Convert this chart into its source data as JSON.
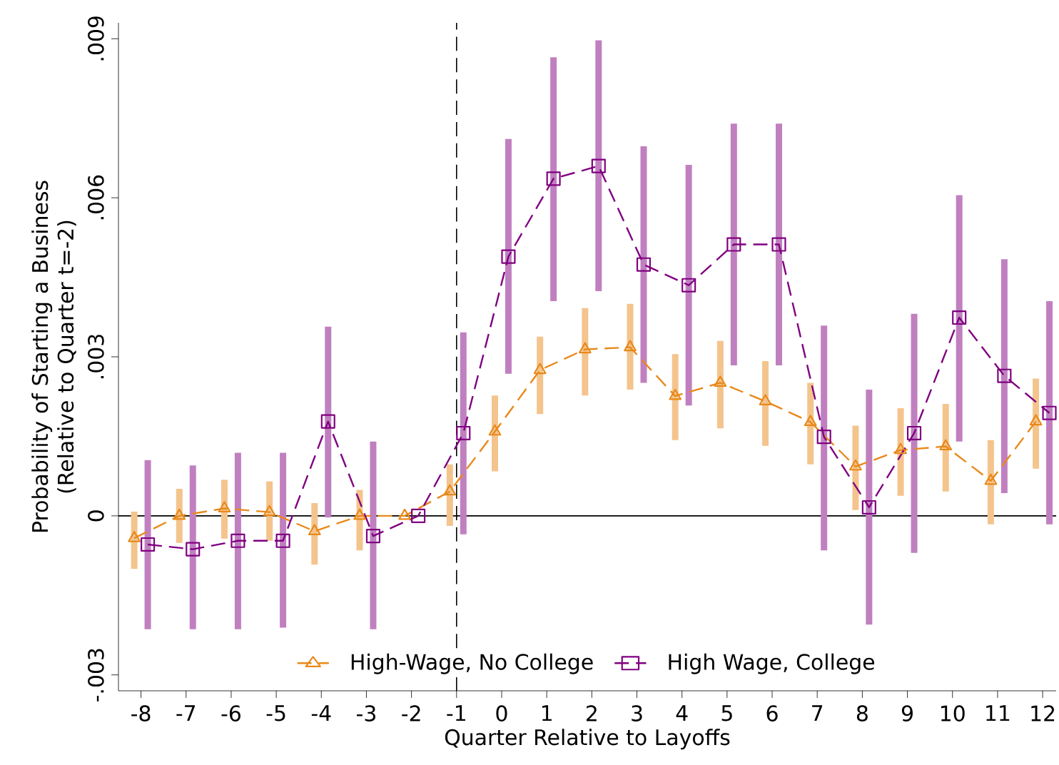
{
  "chart_data": {
    "type": "line",
    "xlabel": "Quarter Relative to Layoffs",
    "ylabel": "Probability of Starting a Business (Relative to Quarter t=-2)",
    "xlim": [
      -8.5,
      12.3
    ],
    "ylim": [
      -0.0033,
      0.0093
    ],
    "xticks": [
      -8,
      -7,
      -6,
      -5,
      -4,
      -3,
      -2,
      -1,
      0,
      1,
      2,
      3,
      4,
      5,
      6,
      7,
      8,
      9,
      10,
      11,
      12
    ],
    "yticks": [
      {
        "value": -0.003,
        "label": "-.003"
      },
      0,
      {
        "value": 0.003,
        "label": ".003"
      },
      {
        "value": 0.006,
        "label": ".006"
      },
      {
        "value": 0.009,
        "label": ".009"
      }
    ],
    "grid": false,
    "legend": "bottom",
    "ref_lines": [
      {
        "axis": "x",
        "value": -1,
        "color": "#000000",
        "line_style": "dashed"
      },
      {
        "axis": "y",
        "value": 0,
        "color": "#000000",
        "line_style": "solid"
      }
    ],
    "series": [
      {
        "name": "High-Wage, No College",
        "color": "#e8891a",
        "marker": "triangle",
        "line_style": "dashed",
        "x": [
          -8.15,
          -7.15,
          -6.15,
          -5.15,
          -4.15,
          -3.15,
          -2.15,
          -1.15,
          -0.15,
          0.85,
          1.85,
          2.85,
          3.85,
          4.85,
          5.85,
          6.85,
          7.85,
          8.85,
          9.85,
          10.85,
          11.85
        ],
        "values": [
          -0.00042,
          0.0,
          0.00014,
          7e-05,
          -0.00029,
          0.0,
          0.0,
          0.00046,
          0.00159,
          0.00275,
          0.00314,
          0.00318,
          0.00226,
          0.00251,
          0.00216,
          0.00177,
          0.00093,
          0.00124,
          0.00131,
          0.00066,
          0.00178
        ],
        "errors": [
          [
            -0.001,
            8e-05
          ],
          [
            -0.00051,
            0.00051
          ],
          [
            -0.00043,
            0.00068
          ],
          [
            -0.00047,
            0.00065
          ],
          [
            -0.00092,
            0.00024
          ],
          [
            -0.00065,
            0.00049
          ],
          null,
          [
            -0.00019,
            0.00097
          ],
          [
            0.00084,
            0.00227
          ],
          [
            0.00192,
            0.00338
          ],
          [
            0.00227,
            0.00392
          ],
          [
            0.00238,
            0.004
          ],
          [
            0.00143,
            0.00305
          ],
          [
            0.00165,
            0.0033
          ],
          [
            0.00132,
            0.00292
          ],
          [
            0.00097,
            0.00251
          ],
          [
            0.00011,
            0.0017
          ],
          [
            0.00038,
            0.00203
          ],
          [
            0.00046,
            0.00211
          ],
          [
            -0.00016,
            0.00143
          ],
          [
            0.00089,
            0.00259
          ]
        ]
      },
      {
        "name": "High Wage, College",
        "color": "#800080",
        "marker": "square",
        "line_style": "dashed",
        "x": [
          -7.85,
          -6.85,
          -5.85,
          -4.85,
          -3.85,
          -2.85,
          -1.85,
          -0.85,
          0.15,
          1.15,
          2.15,
          3.15,
          4.15,
          5.15,
          6.15,
          7.15,
          8.15,
          9.15,
          10.15,
          11.15,
          12.15
        ],
        "values": [
          -0.00054,
          -0.00063,
          -0.00047,
          -0.00047,
          0.00178,
          -0.00038,
          0.0,
          0.00156,
          0.00489,
          0.00636,
          0.0066,
          0.00474,
          0.00435,
          0.00512,
          0.00512,
          0.00149,
          0.00016,
          0.00156,
          0.00374,
          0.00264,
          0.00194
        ],
        "errors": [
          [
            -0.00214,
            0.00105
          ],
          [
            -0.00214,
            0.00095
          ],
          [
            -0.00214,
            0.00119
          ],
          [
            -0.00211,
            0.00119
          ],
          [
            -3e-05,
            0.00357
          ],
          [
            -0.00214,
            0.0014
          ],
          null,
          [
            -0.00035,
            0.00346
          ],
          [
            0.00268,
            0.00711
          ],
          [
            0.00405,
            0.00865
          ],
          [
            0.00424,
            0.00897
          ],
          [
            0.00251,
            0.00697
          ],
          [
            0.00208,
            0.00662
          ],
          [
            0.00284,
            0.0074
          ],
          [
            0.00284,
            0.0074
          ],
          [
            -0.00065,
            0.00359
          ],
          [
            -0.00205,
            0.00238
          ],
          [
            -0.0007,
            0.00381
          ],
          [
            0.0014,
            0.00605
          ],
          [
            0.00043,
            0.00484
          ],
          [
            -0.00016,
            0.00405
          ]
        ]
      }
    ]
  }
}
